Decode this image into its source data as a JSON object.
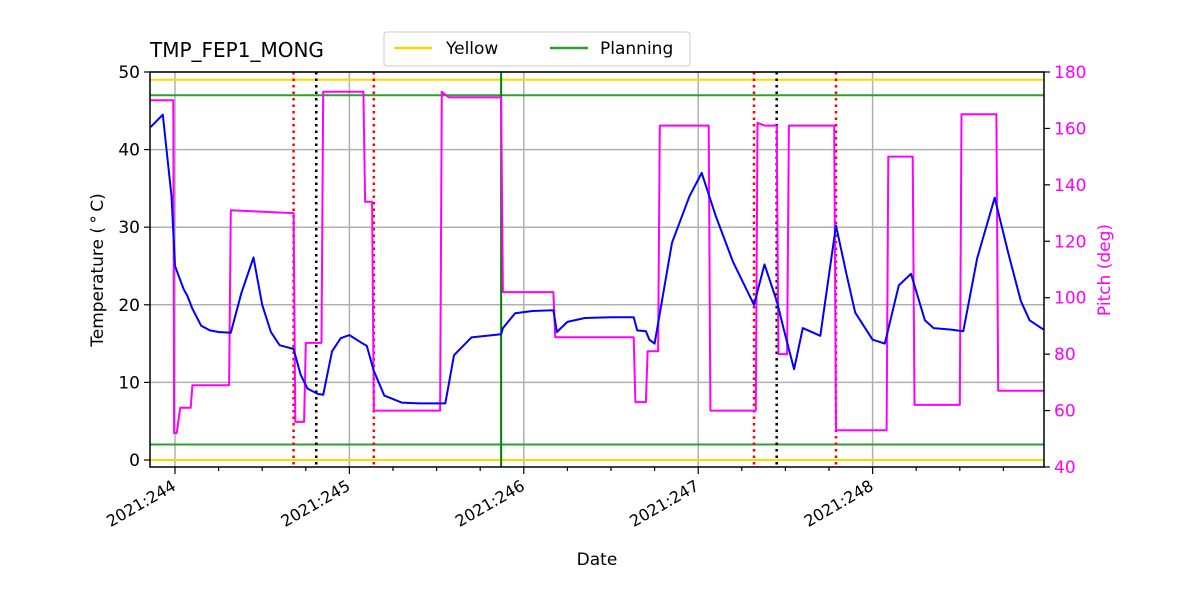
{
  "chart_data": {
    "type": "line",
    "title": "TMP_FEP1_MONG",
    "xlabel": "Date",
    "ylabel": "Temperature ($^\\circ$C)",
    "ylabel_display": "Temperature ( ° C)",
    "y2label": "Pitch (deg)",
    "ylim": [
      -1,
      50
    ],
    "y2lim": [
      40,
      180
    ],
    "grid": true,
    "legend": {
      "position": "top-center, outside axes",
      "entries": [
        {
          "label": "Yellow",
          "color": "#ffd700"
        },
        {
          "label": "Planning",
          "color": "#2ca02c"
        }
      ]
    },
    "x_ticks": [
      "2021:244",
      "2021:245",
      "2021:246",
      "2021:247",
      "2021:248"
    ],
    "y_ticks": [
      0,
      10,
      20,
      30,
      40,
      50
    ],
    "y2_ticks": [
      40,
      60,
      80,
      100,
      120,
      140,
      160,
      180
    ],
    "limit_lines": [
      {
        "name": "Yellow high",
        "value": 49,
        "color": "#ffd700"
      },
      {
        "name": "Planning high",
        "value": 47,
        "color": "#2ca02c"
      },
      {
        "name": "Planning low",
        "value": 2,
        "color": "#2ca02c"
      },
      {
        "name": "Yellow low",
        "value": 0,
        "color": "#ffd700"
      }
    ],
    "vertical_lines": [
      {
        "x_day": 244.68,
        "style": "dotted",
        "color": "#ff0000"
      },
      {
        "x_day": 244.81,
        "style": "dotted",
        "color": "#000000"
      },
      {
        "x_day": 245.14,
        "style": "dotted",
        "color": "#ff0000"
      },
      {
        "x_day": 245.87,
        "style": "solid",
        "color": "#008000"
      },
      {
        "x_day": 247.32,
        "style": "dotted",
        "color": "#ff0000"
      },
      {
        "x_day": 247.45,
        "style": "dotted",
        "color": "#000000"
      },
      {
        "x_day": 247.79,
        "style": "dotted",
        "color": "#ff0000"
      }
    ],
    "series": [
      {
        "name": "TMP_FEP1_MONG",
        "axis": "left",
        "color": "#0000ff",
        "x_day": [
          243.86,
          243.93,
          243.98,
          244.0,
          244.05,
          244.07,
          244.1,
          244.15,
          244.2,
          244.25,
          244.32,
          244.38,
          244.45,
          244.5,
          244.55,
          244.6,
          244.68,
          244.72,
          244.76,
          244.82,
          244.85,
          244.9,
          244.95,
          245.0,
          245.07,
          245.1,
          245.14,
          245.2,
          245.3,
          245.4,
          245.5,
          245.55,
          245.6,
          245.7,
          245.87,
          245.88,
          245.95,
          246.05,
          246.17,
          246.19,
          246.25,
          246.35,
          246.5,
          246.63,
          246.65,
          246.7,
          246.72,
          246.75,
          246.85,
          246.95,
          247.02,
          247.1,
          247.2,
          247.32,
          247.38,
          247.45,
          247.5,
          247.55,
          247.6,
          247.7,
          247.79,
          247.85,
          247.9,
          248.0,
          248.07,
          248.15,
          248.22,
          248.3,
          248.35,
          248.45,
          248.52,
          248.6,
          248.7,
          248.78,
          248.85,
          248.9,
          248.98
        ],
        "values": [
          42.9,
          44.5,
          34.0,
          25.0,
          22.0,
          21.2,
          19.5,
          17.3,
          16.7,
          16.5,
          16.4,
          21.5,
          26.1,
          20.0,
          16.5,
          14.8,
          14.3,
          11.0,
          9.2,
          8.5,
          8.4,
          14.0,
          15.7,
          16.1,
          15.1,
          14.7,
          11.5,
          8.3,
          7.4,
          7.3,
          7.3,
          7.3,
          13.5,
          15.8,
          16.2,
          17.0,
          18.9,
          19.2,
          19.3,
          16.5,
          17.8,
          18.3,
          18.4,
          18.4,
          16.7,
          16.6,
          15.5,
          15.0,
          28.0,
          34.0,
          37.0,
          31.5,
          25.5,
          20.0,
          25.2,
          20.5,
          16.0,
          11.7,
          17.0,
          16.0,
          30.2,
          24.0,
          19.0,
          15.5,
          15.0,
          22.5,
          24.0,
          18.0,
          17.0,
          16.8,
          16.6,
          26.0,
          33.8,
          26.5,
          20.5,
          18.0,
          16.8
        ]
      },
      {
        "name": "Pitch",
        "axis": "right",
        "color": "#ff00ff",
        "x_day": [
          243.86,
          243.99,
          243.995,
          244.01,
          244.03,
          244.04,
          244.06,
          244.09,
          244.1,
          244.11,
          244.31,
          244.32,
          244.68,
          244.69,
          244.74,
          244.75,
          244.76,
          244.84,
          244.85,
          244.98,
          245.08,
          245.09,
          245.13,
          245.14,
          245.15,
          245.52,
          245.53,
          245.57,
          245.58,
          245.87,
          245.88,
          246.17,
          246.18,
          246.63,
          246.64,
          246.7,
          246.71,
          246.77,
          246.78,
          247.06,
          247.07,
          247.33,
          247.34,
          247.38,
          247.45,
          247.46,
          247.51,
          247.52,
          247.78,
          247.79,
          248.08,
          248.09,
          248.23,
          248.24,
          248.5,
          248.51,
          248.71,
          248.72,
          248.98
        ],
        "values": [
          170,
          170,
          52,
          52,
          61,
          61,
          61,
          61,
          69,
          69,
          69,
          131,
          130,
          56,
          56,
          84,
          84,
          84,
          173,
          173,
          173,
          134,
          134,
          60,
          60,
          60,
          173,
          171,
          171,
          171,
          102,
          102,
          86,
          86,
          63,
          63,
          81,
          81,
          161,
          161,
          60,
          60,
          162,
          161,
          161,
          80,
          80,
          161,
          161,
          53,
          53,
          150,
          150,
          62,
          62,
          165,
          165,
          67,
          67
        ]
      }
    ]
  }
}
